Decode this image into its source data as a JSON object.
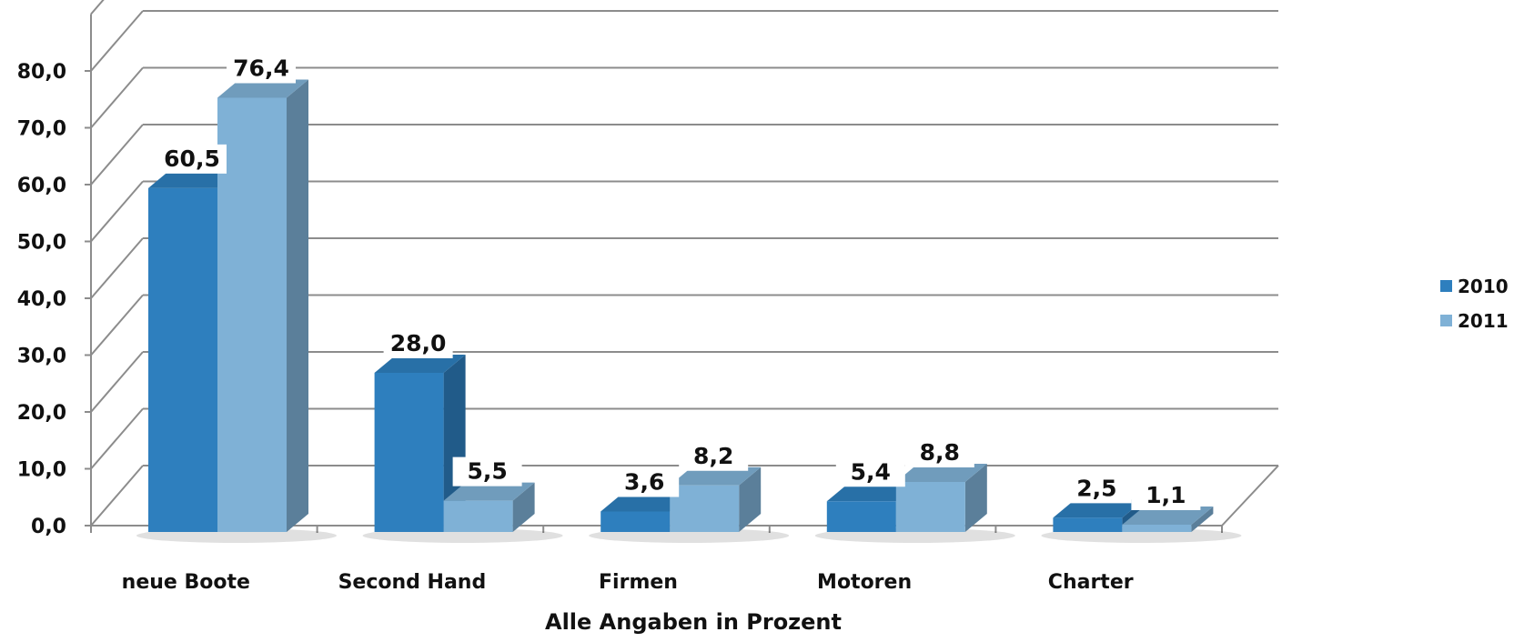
{
  "chart_data": {
    "type": "bar",
    "categories": [
      "neue Boote",
      "Second Hand",
      "Firmen",
      "Motoren",
      "Charter"
    ],
    "series": [
      {
        "name": "2010",
        "values": [
          60.5,
          28.0,
          3.6,
          5.4,
          2.5
        ],
        "labels": [
          "60,5",
          "28,0",
          "3,6",
          "5,4",
          "2,5"
        ],
        "color": "#2e7fbe"
      },
      {
        "name": "2011",
        "values": [
          76.4,
          5.5,
          8.2,
          8.8,
          1.1
        ],
        "labels": [
          "76,4",
          "5,5",
          "8,2",
          "8,8",
          "1,1"
        ],
        "color": "#7fb1d6"
      }
    ],
    "xlabel": "Alle Angaben in Prozent",
    "ylabel": "",
    "ylim": [
      0,
      80
    ],
    "yticks": [
      "0,0",
      "10,0",
      "20,0",
      "30,0",
      "40,0",
      "50,0",
      "60,0",
      "70,0",
      "80,0"
    ],
    "grid": true,
    "legend_position": "right",
    "style": "3d-clustered"
  }
}
